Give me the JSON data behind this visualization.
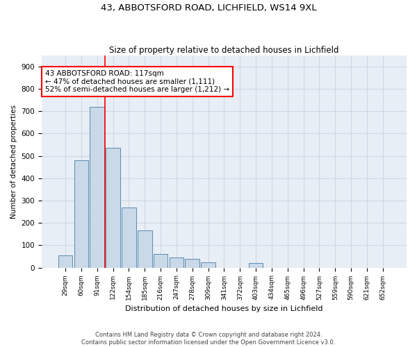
{
  "title1": "43, ABBOTSFORD ROAD, LICHFIELD, WS14 9XL",
  "title2": "Size of property relative to detached houses in Lichfield",
  "xlabel": "Distribution of detached houses by size in Lichfield",
  "ylabel": "Number of detached properties",
  "categories": [
    "29sqm",
    "60sqm",
    "91sqm",
    "122sqm",
    "154sqm",
    "185sqm",
    "216sqm",
    "247sqm",
    "278sqm",
    "309sqm",
    "341sqm",
    "372sqm",
    "403sqm",
    "434sqm",
    "465sqm",
    "496sqm",
    "527sqm",
    "559sqm",
    "590sqm",
    "621sqm",
    "652sqm"
  ],
  "values": [
    55,
    480,
    720,
    535,
    270,
    165,
    60,
    45,
    40,
    25,
    0,
    0,
    20,
    0,
    0,
    0,
    0,
    0,
    0,
    0,
    0
  ],
  "bar_color": "#c9d9e8",
  "bar_edge_color": "#5a8ab0",
  "vline_index": 2,
  "annotation_text": "43 ABBOTSFORD ROAD: 117sqm\n← 47% of detached houses are smaller (1,111)\n52% of semi-detached houses are larger (1,212) →",
  "annotation_box_color": "white",
  "annotation_box_edge_color": "red",
  "vline_color": "red",
  "grid_color": "#d0d8e4",
  "bg_color": "#e8eef5",
  "footer1": "Contains HM Land Registry data © Crown copyright and database right 2024.",
  "footer2": "Contains public sector information licensed under the Open Government Licence v3.0.",
  "ylim": [
    0,
    950
  ],
  "yticks": [
    0,
    100,
    200,
    300,
    400,
    500,
    600,
    700,
    800,
    900
  ]
}
